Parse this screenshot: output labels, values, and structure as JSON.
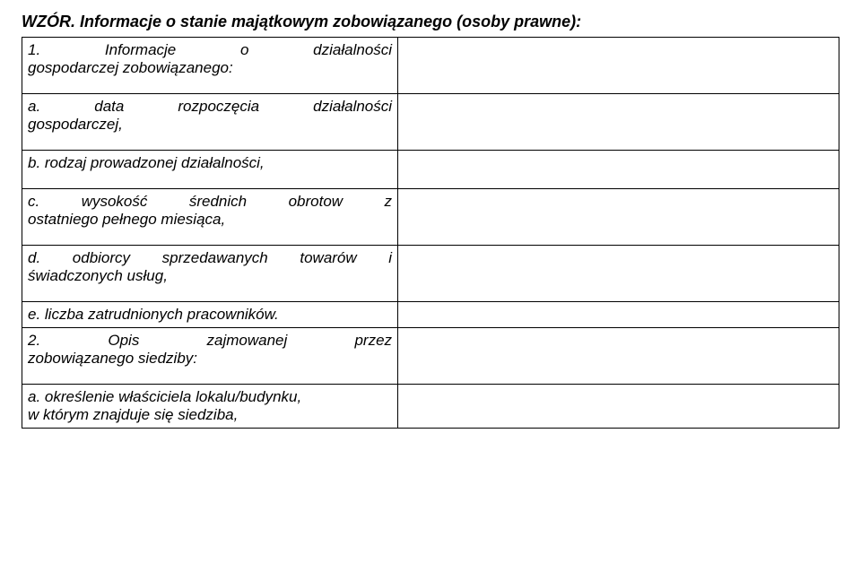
{
  "header": "WZÓR. Informacje o stanie majątkowym zobowiązanego (osoby prawne):",
  "rows": {
    "r1": {
      "line1": "1. Informacje o działalności",
      "line2": "gospodarczej zobowiązanego:"
    },
    "r2": {
      "line1": "a. data rozpoczęcia działalności",
      "line2": "gospodarczej,"
    },
    "r3": {
      "line1": "b. rodzaj prowadzonej działalności,"
    },
    "r4": {
      "line1": "c. wysokość średnich obrotow z",
      "line2": "ostatniego pełnego miesiąca,"
    },
    "r5": {
      "line1": "d. odbiorcy sprzedawanych towarów i",
      "line2": "świadczonych usług,"
    },
    "r6": {
      "line1": "e. liczba zatrudnionych pracowników."
    },
    "r7": {
      "line1": "2. Opis zajmowanej przez",
      "line2": "zobowiązanego siedziby:"
    },
    "r8": {
      "line1": "a. określenie właściciela lokalu/budynku,",
      "line2": "w którym znajduje się siedziba,"
    }
  }
}
